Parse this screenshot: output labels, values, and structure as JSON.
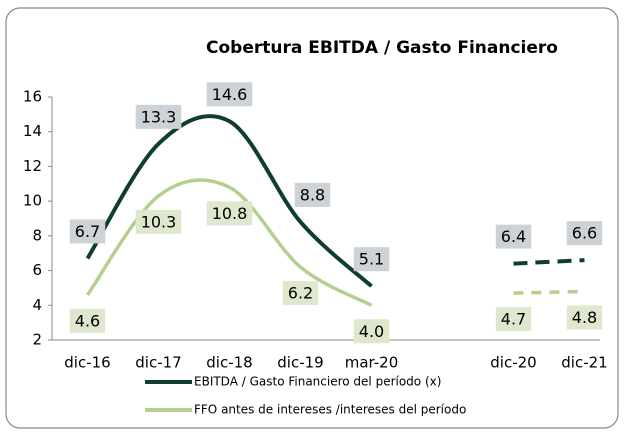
{
  "chart_data": {
    "type": "line",
    "title": "Cobertura EBITDA / Gasto Financiero",
    "categories": [
      "dic-16",
      "dic-17",
      "dic-18",
      "dic-19",
      "mar-20",
      null,
      "dic-20",
      "dic-21"
    ],
    "series": [
      {
        "name": "EBITDA / Gasto Financiero del período (x)",
        "color": "#0f3d30",
        "label_color": "#ccd2d6",
        "values": [
          6.7,
          13.3,
          14.6,
          8.8,
          5.1,
          null,
          6.4,
          6.6
        ]
      },
      {
        "name": "FFO antes de intereses /intereses del período",
        "color": "#b4cf8e",
        "label_color": "#dfe8cf",
        "values": [
          4.6,
          10.3,
          10.8,
          6.2,
          4.0,
          null,
          4.7,
          4.8
        ],
        "value_labels": [
          "4.6",
          "10.3",
          "10.8",
          "6.2",
          "4.0",
          null,
          "4.7",
          "4.8"
        ]
      }
    ],
    "ylim": [
      2,
      16
    ],
    "yticks": [
      2,
      4,
      6,
      8,
      10,
      12,
      14,
      16
    ]
  }
}
